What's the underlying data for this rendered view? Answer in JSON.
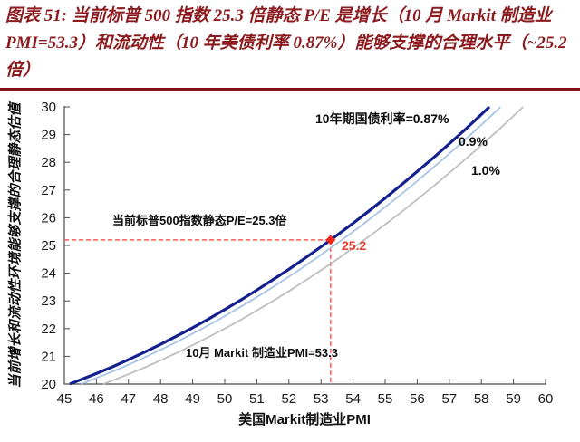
{
  "figure": {
    "title": "图表 51: 当前标普 500 指数 25.3 倍静态 P/E 是增长（10 月 Markit 制造业 PMI=53.3）和流动性（10 年美债利率 0.87%）能够支撑的合理水平（~25.2 倍）",
    "title_color": "#8B1B1E",
    "rule_color": "#7E1416"
  },
  "chart_data": {
    "type": "line",
    "xlabel": "美国Markit制造业PMI",
    "ylabel": "当前增长和流动性环境能够支撑的合理静态估值",
    "xlim": [
      45,
      60
    ],
    "ylim": [
      20,
      30
    ],
    "x_ticks": [
      45,
      46,
      47,
      48,
      49,
      50,
      51,
      52,
      53,
      54,
      55,
      56,
      57,
      58,
      59,
      60
    ],
    "y_ticks": [
      20,
      21,
      22,
      23,
      24,
      25,
      26,
      27,
      28,
      29,
      30
    ],
    "grid": false,
    "legend_position": "labels-on-chart",
    "series": [
      {
        "name": "10年期国债利率=0.87%",
        "color": "#14208E",
        "width": 3.2,
        "points": [
          [
            45.17,
            20
          ],
          [
            45.5,
            20.15
          ],
          [
            46,
            20.38
          ],
          [
            46.5,
            20.62
          ],
          [
            47,
            20.88
          ],
          [
            47.5,
            21.15
          ],
          [
            48,
            21.43
          ],
          [
            48.5,
            21.73
          ],
          [
            49,
            22.03
          ],
          [
            49.5,
            22.35
          ],
          [
            50,
            22.69
          ],
          [
            50.5,
            23.03
          ],
          [
            51,
            23.39
          ],
          [
            51.5,
            23.76
          ],
          [
            52,
            24.14
          ],
          [
            52.5,
            24.54
          ],
          [
            53,
            24.95
          ],
          [
            53.3,
            25.2
          ],
          [
            53.5,
            25.37
          ],
          [
            54,
            25.8
          ],
          [
            54.5,
            26.25
          ],
          [
            55,
            26.71
          ],
          [
            55.5,
            27.18
          ],
          [
            56,
            27.67
          ],
          [
            56.5,
            28.16
          ],
          [
            57,
            28.67
          ],
          [
            57.5,
            29.19
          ],
          [
            58,
            29.73
          ],
          [
            58.25,
            30
          ]
        ]
      },
      {
        "name": "0.9%",
        "color": "#A8C4E6",
        "width": 1.8,
        "points": [
          [
            45.52,
            20
          ],
          [
            45.85,
            20.15
          ],
          [
            46.35,
            20.38
          ],
          [
            46.85,
            20.62
          ],
          [
            47.35,
            20.88
          ],
          [
            47.85,
            21.15
          ],
          [
            48.35,
            21.43
          ],
          [
            48.85,
            21.73
          ],
          [
            49.35,
            22.03
          ],
          [
            49.85,
            22.35
          ],
          [
            50.35,
            22.69
          ],
          [
            50.85,
            23.03
          ],
          [
            51.35,
            23.39
          ],
          [
            51.85,
            23.76
          ],
          [
            52.35,
            24.14
          ],
          [
            52.85,
            24.54
          ],
          [
            53.35,
            24.95
          ],
          [
            53.65,
            25.2
          ],
          [
            53.85,
            25.37
          ],
          [
            54.35,
            25.8
          ],
          [
            54.85,
            26.25
          ],
          [
            55.35,
            26.71
          ],
          [
            55.85,
            27.18
          ],
          [
            56.35,
            27.67
          ],
          [
            56.85,
            28.16
          ],
          [
            57.35,
            28.67
          ],
          [
            57.85,
            29.19
          ],
          [
            58.35,
            29.73
          ],
          [
            58.6,
            30
          ]
        ]
      },
      {
        "name": "1.0%",
        "color": "#BFBFBF",
        "width": 1.8,
        "points": [
          [
            46.22,
            20
          ],
          [
            46.55,
            20.15
          ],
          [
            47.05,
            20.38
          ],
          [
            47.55,
            20.62
          ],
          [
            48.05,
            20.88
          ],
          [
            48.55,
            21.15
          ],
          [
            49.05,
            21.43
          ],
          [
            49.55,
            21.73
          ],
          [
            50.05,
            22.03
          ],
          [
            50.55,
            22.35
          ],
          [
            51.05,
            22.69
          ],
          [
            51.55,
            23.03
          ],
          [
            52.05,
            23.39
          ],
          [
            52.55,
            23.76
          ],
          [
            53.05,
            24.14
          ],
          [
            53.55,
            24.54
          ],
          [
            54.05,
            24.95
          ],
          [
            54.35,
            25.2
          ],
          [
            54.55,
            25.37
          ],
          [
            55.05,
            25.8
          ],
          [
            55.55,
            26.25
          ],
          [
            56.05,
            26.71
          ],
          [
            56.55,
            27.18
          ],
          [
            57.05,
            27.67
          ],
          [
            57.55,
            28.16
          ],
          [
            58.05,
            28.67
          ],
          [
            58.55,
            29.19
          ],
          [
            59.05,
            29.73
          ],
          [
            59.3,
            30
          ]
        ]
      }
    ],
    "highlight": {
      "x": 53.3,
      "y": 25.2,
      "marker_color": "#F3251B",
      "dash_color": "#FA5A50"
    },
    "annotations": {
      "rate_curve_label": "10年期国债利率=0.87%",
      "rate_09_label": "0.9%",
      "rate_10_label": "1.0%",
      "pe_label": "当前标普500指数静态P/E=25.3倍",
      "pmi_label": "10月 Markit 制造业PMI=53.3",
      "point_label": "25.2"
    }
  }
}
